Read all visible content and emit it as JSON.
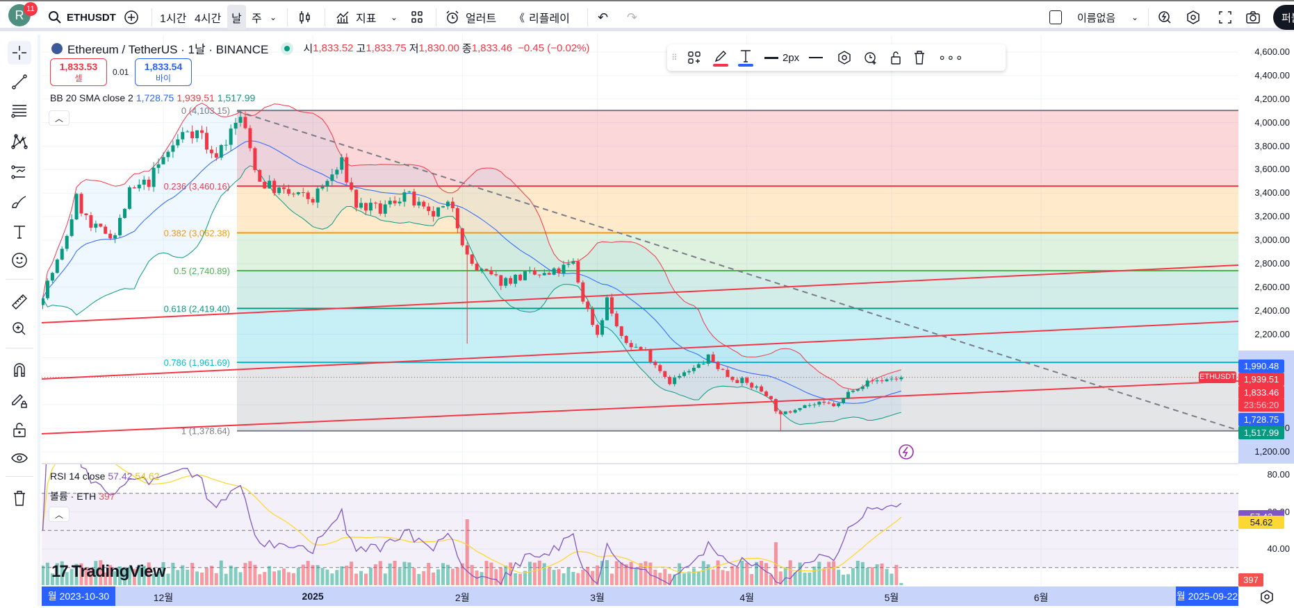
{
  "toolbar": {
    "avatar_letter": "R",
    "notif_count": "11",
    "symbol": "ETHUSDT",
    "intervals": [
      "1시간",
      "4시간",
      "날",
      "주"
    ],
    "indicators_label": "지표",
    "alert_label": "얼러트",
    "replay_label": "리플레이",
    "layout_name": "이름없음",
    "publish_label": "퍼블"
  },
  "legend": {
    "title": "Ethereum / TetherUS · 1날 · BINANCE",
    "o_label": "시",
    "o": "1,833.52",
    "h_label": "고",
    "h": "1,833.75",
    "l_label": "저",
    "l": "1,830.00",
    "c_label": "종",
    "c": "1,833.46",
    "change": "−0.45 (−0.02%)",
    "sell_price": "1,833.53",
    "sell_label": "셀",
    "spread": "0.01",
    "buy_price": "1,833.54",
    "buy_label": "바이",
    "bb_label": "BB 20 SMA close 2",
    "bb_basis": "1,728.75",
    "bb_upper": "1,939.51",
    "bb_lower": "1,517.99"
  },
  "drawing_toolbar": {
    "width_label": "2px",
    "line_color": "#f23645",
    "text_color": "#2962ff"
  },
  "price_axis": {
    "labels": [
      "4,600.00",
      "4,400.00",
      "4,200.00",
      "4,000.00",
      "3,800.00",
      "3,600.00",
      "3,400.00",
      "3,200.00",
      "3,000.00",
      "2,800.00",
      "2,600.00",
      "2,400.00",
      "2,200.00",
      "1,400.00",
      "1,200.00"
    ],
    "label_values": [
      4600,
      4400,
      4200,
      4000,
      3800,
      3600,
      3400,
      3200,
      3000,
      2800,
      2600,
      2400,
      2200,
      1400,
      1200
    ],
    "badges": [
      {
        "text": "1,990.48",
        "value": 1990.48,
        "color": "#2962ff"
      },
      {
        "text": "1,939.51",
        "value": 1939.51,
        "color": "#f23645"
      },
      {
        "text": "1,833.46",
        "value": 1833.46,
        "color": "#f23645",
        "sub": "23:56:20"
      },
      {
        "text": "1,728.75",
        "value": 1728.75,
        "color": "#2962ff"
      },
      {
        "text": "1,517.99",
        "value": 1517.99,
        "color": "#089981"
      }
    ],
    "symbol_tag": "ETHUSDT"
  },
  "fib": {
    "levels": [
      {
        "label": "0 (4,103.15)",
        "price": 4103.15,
        "color": "#787b86",
        "fill": "rgba(242,54,69,0.2)"
      },
      {
        "label": "0.236 (3,460.16)",
        "price": 3460.16,
        "color": "#f23645",
        "fill": "rgba(255,152,0,0.2)"
      },
      {
        "label": "0.382 (3,062.38)",
        "price": 3062.38,
        "color": "#ff9800",
        "fill": "rgba(76,175,80,0.18)"
      },
      {
        "label": "0.5 (2,740.89)",
        "price": 2740.89,
        "color": "#4caf50",
        "fill": "rgba(8,153,129,0.18)"
      },
      {
        "label": "0.618 (2,419.40)",
        "price": 2419.4,
        "color": "#089981",
        "fill": "rgba(0,188,212,0.22)"
      },
      {
        "label": "0.786 (1,961.69)",
        "price": 1961.69,
        "color": "#00bcd4",
        "fill": "rgba(120,123,134,0.2)"
      },
      {
        "label": "1 (1,378.64)",
        "price": 1378.64,
        "color": "#787b86",
        "fill": ""
      }
    ]
  },
  "rsi": {
    "label": "RSI 14 close",
    "value": "57.42",
    "ma": "54.62",
    "value_color": "#7e57c2",
    "ma_color": "#fdd835",
    "axis_labels": [
      "80.00",
      "60.00",
      "40.00"
    ],
    "axis_values": [
      80,
      60,
      40
    ]
  },
  "volume": {
    "label": "볼륨 · ETH",
    "value": "397",
    "color": "#ef5350"
  },
  "time_axis": {
    "start_badge": "월 2023-10-30",
    "end_badge": "월 2025-09-22",
    "labels": [
      {
        "text": "12월",
        "day": 0
      },
      {
        "text": "2025",
        "day": 31,
        "bold": true
      },
      {
        "text": "2월",
        "day": 62
      },
      {
        "text": "3월",
        "day": 90
      },
      {
        "text": "4월",
        "day": 121
      },
      {
        "text": "5월",
        "day": 151
      },
      {
        "text": "6월",
        "day": 182
      }
    ]
  },
  "branding": {
    "logo": "TradingView"
  },
  "chart_data": {
    "type": "candlestick",
    "symbol": "ETHUSDT",
    "first_day": -25,
    "last_day": 153,
    "close_keypoints": [
      [
        -25,
        2550
      ],
      [
        -21,
        2900
      ],
      [
        -18,
        3350
      ],
      [
        -15,
        3100
      ],
      [
        -10,
        3050
      ],
      [
        -7,
        3400
      ],
      [
        -3,
        3500
      ],
      [
        0,
        3700
      ],
      [
        5,
        3950
      ],
      [
        8,
        3900
      ],
      [
        10,
        3700
      ],
      [
        13,
        3850
      ],
      [
        16,
        4050
      ],
      [
        20,
        3500
      ],
      [
        25,
        3400
      ],
      [
        31,
        3350
      ],
      [
        37,
        3650
      ],
      [
        40,
        3300
      ],
      [
        45,
        3250
      ],
      [
        50,
        3400
      ],
      [
        55,
        3200
      ],
      [
        60,
        3300
      ],
      [
        63,
        2850
      ],
      [
        65,
        2750
      ],
      [
        70,
        2650
      ],
      [
        75,
        2700
      ],
      [
        80,
        2700
      ],
      [
        85,
        2800
      ],
      [
        87,
        2500
      ],
      [
        90,
        2200
      ],
      [
        92,
        2500
      ],
      [
        95,
        2150
      ],
      [
        100,
        2050
      ],
      [
        105,
        1800
      ],
      [
        110,
        1900
      ],
      [
        113,
        2000
      ],
      [
        117,
        1850
      ],
      [
        120,
        1800
      ],
      [
        125,
        1700
      ],
      [
        128,
        1500
      ],
      [
        132,
        1600
      ],
      [
        140,
        1600
      ],
      [
        143,
        1750
      ],
      [
        147,
        1800
      ],
      [
        153,
        1833.46
      ]
    ],
    "special_wicks": [
      {
        "day": 16,
        "high": 4103.15
      },
      {
        "day": 63,
        "low": 2120
      },
      {
        "day": 128,
        "low": 1378.64
      }
    ],
    "volume_spikes": [
      {
        "day": 63,
        "mult": 3.2
      },
      {
        "day": 127,
        "mult": 2.5
      },
      {
        "day": 130,
        "mult": 2.2
      }
    ],
    "bb": {
      "length": 20,
      "mult": 2
    },
    "rsi_length": 14,
    "rsi_ma_length": 14
  }
}
